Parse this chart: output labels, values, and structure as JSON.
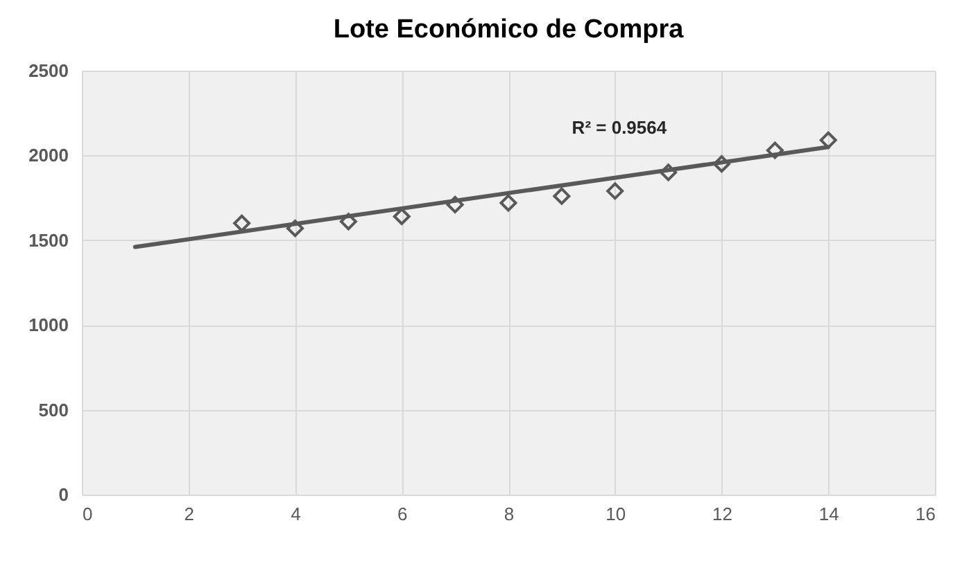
{
  "chart_data": {
    "type": "scatter",
    "title": "Lote Económico de Compra",
    "x": [
      3,
      4,
      5,
      6,
      7,
      8,
      9,
      10,
      11,
      12,
      13,
      14
    ],
    "series": [
      {
        "color": "#595959",
        "marker": "diamond",
        "values": [
          1600,
          1570,
          1610,
          1640,
          1710,
          1720,
          1760,
          1790,
          1900,
          1950,
          2030,
          2090
        ]
      },
      {
        "type": "line",
        "color": "#595959",
        "x": [
          1,
          14
        ],
        "values": [
          1460,
          2050
        ],
        "line_style": "solid"
      }
    ],
    "xlim": [
      0,
      16
    ],
    "xticks": [
      0,
      2,
      4,
      6,
      8,
      10,
      12,
      14,
      16
    ],
    "ylim": [
      0,
      2500
    ],
    "yticks": [
      0,
      500,
      1000,
      1500,
      2000,
      2500
    ],
    "grid": true,
    "annotations": [
      "R² = 0.9564"
    ]
  }
}
